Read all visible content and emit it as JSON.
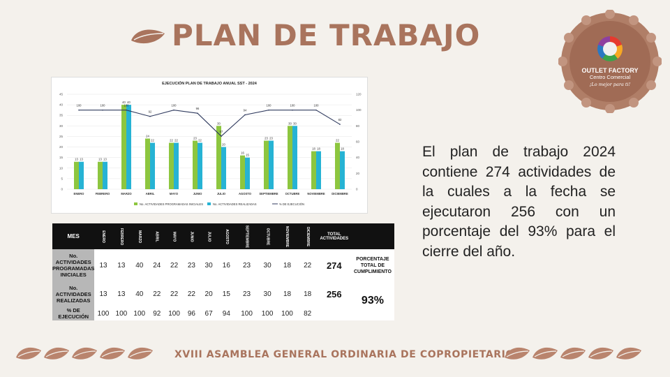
{
  "title": "PLAN DE TRABAJO",
  "logo": {
    "line1": "OUTLET FACTORY",
    "line2": "Centro Comercial",
    "line3": "¡Lo mejor para ti!"
  },
  "colors": {
    "brand": "#a9745d",
    "green": "#8dc63f",
    "cyan": "#26b3d4",
    "line": "#2f3a5e"
  },
  "description": "El plan de trabajo 2024 contiene 274 actividades de la cuales a la fecha se ejecutaron 256 con un porcentaje del 93% para el cierre del año.",
  "chart_data": {
    "type": "bar",
    "title": "EJECUCIÓN PLAN DE TRABAJO ANUAL SST - 2024",
    "categories": [
      "ENERO",
      "FEBRERO",
      "MARZO",
      "ABRIL",
      "MAYO",
      "JUNIO",
      "JULIO",
      "AGOSTO",
      "SEPTIEMBRE",
      "OCTUBRE",
      "NOVIEMBRE",
      "DICIEMBRE"
    ],
    "series": [
      {
        "name": "No. ACTIVIDADES PROGRAMADAS INICIALES",
        "type": "bar",
        "axis": "left",
        "values": [
          13,
          13,
          40,
          24,
          22,
          23,
          30,
          16,
          23,
          30,
          18,
          22
        ]
      },
      {
        "name": "No. ACTIVIDADES REALIZADAS",
        "type": "bar",
        "axis": "left",
        "values": [
          13,
          13,
          40,
          22,
          22,
          22,
          20,
          15,
          23,
          30,
          18,
          18
        ]
      },
      {
        "name": "% DE EJECUCIÓN",
        "type": "line",
        "axis": "right",
        "values": [
          100,
          100,
          100,
          92,
          100,
          96,
          67,
          94,
          100,
          100,
          100,
          82
        ]
      }
    ],
    "yticks_left": [
      "0",
      "5",
      "10",
      "15",
      "20",
      "25",
      "30",
      "35",
      "40",
      "45"
    ],
    "yticks_right": [
      "0",
      "20",
      "40",
      "60",
      "80",
      "100",
      "120"
    ],
    "ylim_left": [
      0,
      45
    ],
    "ylim_right": [
      0,
      120
    ],
    "legend": "bottom"
  },
  "table": {
    "header_label": "MES",
    "months": [
      "ENERO",
      "FEBRERO",
      "MARZO",
      "ABRIL",
      "MAYO",
      "JUNIO",
      "JULIO",
      "AGOSTO",
      "SEPTIEMBRE",
      "OCTUBRE",
      "NOVIEMBRE",
      "DICIEMBRE"
    ],
    "total_header": "TOTAL ACTIVIDADES",
    "rows": [
      {
        "label": "No. ACTIVIDADES PROGRAMADAS INICIALES",
        "values": [
          "13",
          "13",
          "40",
          "24",
          "22",
          "23",
          "30",
          "16",
          "23",
          "30",
          "18",
          "22"
        ],
        "total": "274"
      },
      {
        "label": "No. ACTIVIDADES REALIZADAS",
        "values": [
          "13",
          "13",
          "40",
          "22",
          "22",
          "22",
          "20",
          "15",
          "23",
          "30",
          "18",
          "18"
        ],
        "total": "256"
      },
      {
        "label": "% DE EJECUCIÓN",
        "values": [
          "100",
          "100",
          "100",
          "92",
          "100",
          "96",
          "67",
          "94",
          "100",
          "100",
          "100",
          "82"
        ],
        "total": ""
      }
    ],
    "pct_label": "PORCENTAJE TOTAL DE CUMPLIMIENTO",
    "pct_value": "93%"
  },
  "footer": "XVIII ASAMBLEA GENERAL ORDINARIA DE COPROPIETARIOS"
}
